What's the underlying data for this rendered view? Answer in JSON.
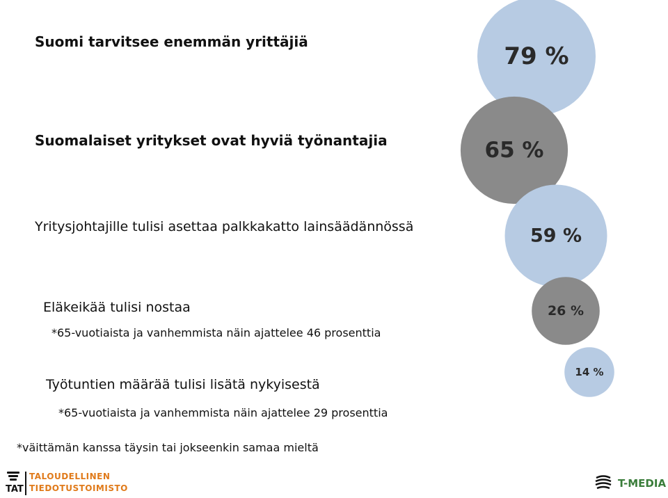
{
  "chart_data": {
    "type": "bubble",
    "items": [
      {
        "label": "Suomi tarvitsee enemmän yrittäjiä",
        "value": 79,
        "value_label": "79 %",
        "color": "#b7cbe3"
      },
      {
        "label": "Suomalaiset yritykset ovat hyviä työnantajia",
        "value": 65,
        "value_label": "65 %",
        "color": "#8a8a8a"
      },
      {
        "label": "Yritysjohtajille tulisi asettaa palkkakatto lainsäädännössä",
        "value": 59,
        "value_label": "59 %",
        "color": "#b7cbe3"
      },
      {
        "label": "Eläkeikää tulisi nostaa",
        "value": 26,
        "value_label": "26 %",
        "color": "#8a8a8a",
        "note": "*65-vuotiaista ja vanhemmista näin ajattelee 46 prosenttia"
      },
      {
        "label": "Työtuntien määrää tulisi lisätä nykyisestä",
        "value": 14,
        "value_label": "14 %",
        "color": "#b7cbe3",
        "note": "*65-vuotiaista ja vanhemmista näin ajattelee 29 prosenttia"
      }
    ],
    "footnote": "*väittämän kanssa täysin tai jokseenkin samaa mieltä"
  },
  "logos": {
    "left_abbr": "TAT",
    "left_line1": "TALOUDELLINEN",
    "left_line2": "TIEDOTUSTOIMISTO",
    "right": "T-MEDIA"
  }
}
